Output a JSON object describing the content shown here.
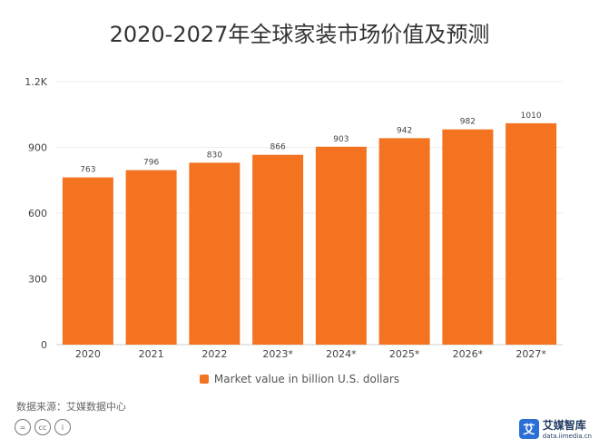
{
  "chart_data": {
    "type": "bar",
    "title": "2020-2027年全球家装市场价值及预测",
    "categories": [
      "2020",
      "2021",
      "2022",
      "2023*",
      "2024*",
      "2025*",
      "2026*",
      "2027*"
    ],
    "series": [
      {
        "name": "Market value in billion U.S. dollars",
        "values": [
          763,
          796,
          830,
          866,
          903,
          942,
          982,
          1010
        ]
      }
    ],
    "data_labels": [
      "763",
      "796",
      "830",
      "866",
      "903",
      "942",
      "982",
      "1010"
    ],
    "y_ticks": [
      0,
      300,
      600,
      900,
      1200
    ],
    "y_tick_labels": [
      "0",
      "300",
      "600",
      "900",
      "1.2K"
    ],
    "ylim": [
      0,
      1200
    ],
    "xlabel": "",
    "ylabel": "",
    "grid": true,
    "legend_position": "bottom-center",
    "bar_color": "#f47321",
    "bars_note_removed": true
  },
  "source": "数据来源：艾媒数据中心",
  "license_icons": [
    "equals-icon",
    "cc-icon",
    "person-icon"
  ],
  "license_labels": [
    "=",
    "cc",
    "i"
  ],
  "logo": {
    "mark": "艾",
    "name": "艾媒智库",
    "url": "data.iimedia.cn",
    "color": "#2a6fd6"
  }
}
